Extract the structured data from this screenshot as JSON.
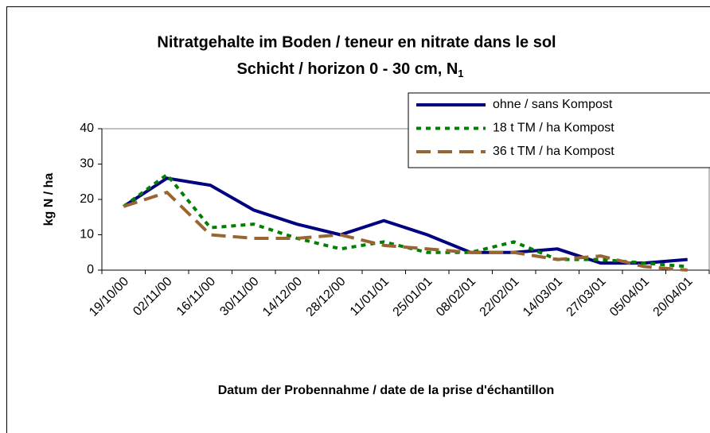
{
  "chart_data": {
    "type": "line",
    "title": "Nitratgehalte im Boden / teneur en nitrate dans le sol",
    "subtitle": "Schicht / horizon  0 - 30 cm, N",
    "subtitle_subscript": "1",
    "x_label": "Datum der Probennahme / date de la prise d'échantillon",
    "y_label": "kg N / ha",
    "categories": [
      "19/10/00",
      "02/11/00",
      "16/11/00",
      "30/11/00",
      "14/12/00",
      "28/12/00",
      "11/01/01",
      "25/01/01",
      "08/02/01",
      "22/02/01",
      "14/03/01",
      "27/03/01",
      "05/04/01",
      "20/04/01"
    ],
    "series": [
      {
        "name": "ohne / sans Kompost",
        "color": "#000080",
        "dash": "solid",
        "values": [
          18,
          26,
          24,
          17,
          13,
          10,
          14,
          10,
          5,
          5,
          6,
          2,
          2,
          3
        ]
      },
      {
        "name": "18 t TM / ha Kompost",
        "color": "#008000",
        "dash": "dotted",
        "values": [
          18,
          27,
          12,
          13,
          9,
          6,
          8,
          5,
          5,
          8,
          3,
          3,
          2,
          1
        ]
      },
      {
        "name": "36 t TM / ha Kompost",
        "color": "#996633",
        "dash": "dashed",
        "values": [
          18,
          22,
          10,
          9,
          9,
          10,
          7,
          6,
          5,
          5,
          3,
          4,
          1,
          0
        ]
      }
    ],
    "ylim": [
      0,
      40
    ],
    "yticks": [
      0,
      10,
      20,
      30,
      40
    ],
    "grid": false,
    "legend": "top-right"
  }
}
